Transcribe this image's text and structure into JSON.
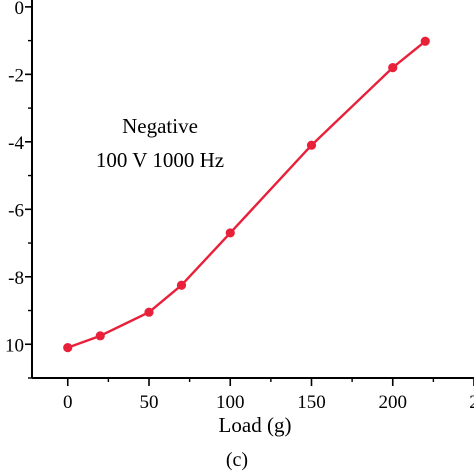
{
  "chart_data": {
    "type": "line",
    "title": "",
    "xlabel": "Load (g)",
    "ylabel": "",
    "panel_label": "(c)",
    "annotations": [
      "Negative",
      "100 V 1000 Hz"
    ],
    "x_tick_labels": [
      "0",
      "50",
      "100",
      "150",
      "200",
      "2"
    ],
    "y_tick_labels": [
      "0",
      "-2",
      "-4",
      "-6",
      "-8",
      "10"
    ],
    "xlim": [
      -22,
      250
    ],
    "ylim": [
      -11,
      0.5
    ],
    "grid": false,
    "legend": "none",
    "series": [
      {
        "color": "#e8203a",
        "marker": "circle",
        "x": [
          0,
          20,
          50,
          70,
          100,
          150,
          200,
          220
        ],
        "y": [
          -10.1,
          -9.75,
          -9.05,
          -8.25,
          -6.7,
          -4.1,
          -1.8,
          -1.02
        ]
      }
    ]
  }
}
